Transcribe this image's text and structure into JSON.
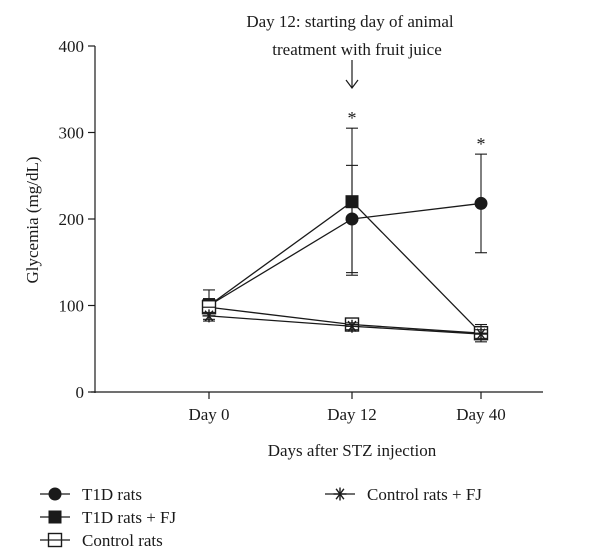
{
  "chart_data": {
    "type": "line",
    "xlabel": "Days after STZ injection",
    "ylabel": "Glycemia (mg/dL)",
    "ylim": [
      0,
      400
    ],
    "yticks": [
      0,
      100,
      200,
      300,
      400
    ],
    "categories": [
      "Day 0",
      "Day 12",
      "Day 40"
    ],
    "annotation": {
      "line1": "Day 12: starting day of animal",
      "line2": "treatment with fruit juice",
      "arrow_at": "Day 12"
    },
    "significance": [
      {
        "category": "Day 12",
        "label": "*"
      },
      {
        "category": "Day 40",
        "label": "*"
      }
    ],
    "series": [
      {
        "name": "T1D rats",
        "marker": "circle",
        "values": [
          100,
          200,
          218
        ],
        "errors": [
          8,
          62,
          57
        ]
      },
      {
        "name": "T1D rats + FJ",
        "marker": "square",
        "values": [
          100,
          220,
          68
        ],
        "errors": [
          18,
          85,
          10
        ]
      },
      {
        "name": "Control rats",
        "marker": "open-square",
        "values": [
          98,
          78,
          68
        ],
        "errors": [
          5,
          5,
          6
        ]
      },
      {
        "name": "Control rats + FJ",
        "marker": "asterisk",
        "values": [
          88,
          76,
          67
        ],
        "errors": [
          4,
          4,
          5
        ]
      }
    ],
    "legend_placement": "bottom"
  }
}
